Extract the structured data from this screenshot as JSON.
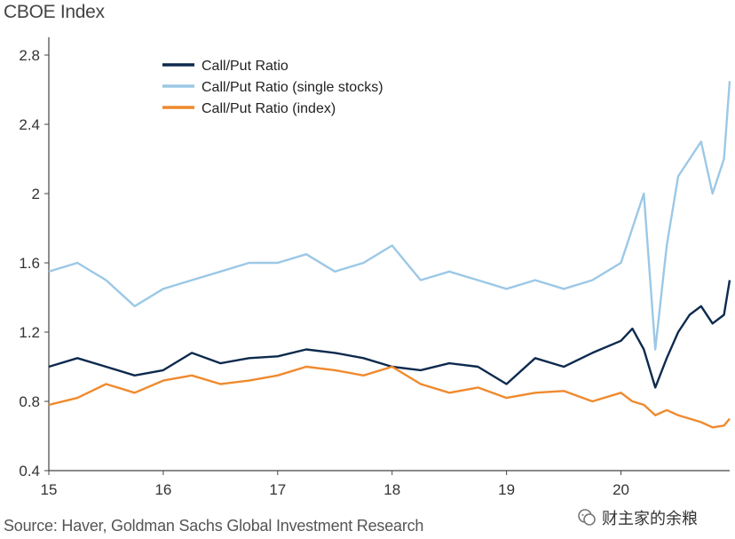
{
  "header": {
    "title": "CBOE Index"
  },
  "footer": {
    "source": "Source: Haver, Goldman Sachs Global Investment Research"
  },
  "watermark": {
    "text": "财主家的余粮",
    "icon": "wechat-icon"
  },
  "chart_data": {
    "type": "line",
    "title": "CBOE Index",
    "xlabel": "",
    "ylabel": "",
    "x_ticks": [
      "15",
      "16",
      "17",
      "18",
      "19",
      "20"
    ],
    "y_ticks": [
      "0.4",
      "0.8",
      "1.2",
      "1.6",
      "2",
      "2.4",
      "2.8"
    ],
    "ylim": [
      0.4,
      2.8
    ],
    "xlim": [
      2015.0,
      2020.95
    ],
    "grid": false,
    "legend_position": "top-left",
    "x": [
      2015.0,
      2015.25,
      2015.5,
      2015.75,
      2016.0,
      2016.25,
      2016.5,
      2016.75,
      2017.0,
      2017.25,
      2017.5,
      2017.75,
      2018.0,
      2018.25,
      2018.5,
      2018.75,
      2019.0,
      2019.25,
      2019.5,
      2019.75,
      2020.0,
      2020.1,
      2020.2,
      2020.3,
      2020.4,
      2020.5,
      2020.6,
      2020.7,
      2020.8,
      2020.9,
      2020.95
    ],
    "series": [
      {
        "name": "Call/Put Ratio",
        "color": "#0d2a4e",
        "values": [
          1.0,
          1.05,
          1.0,
          0.95,
          0.98,
          1.08,
          1.02,
          1.05,
          1.06,
          1.1,
          1.08,
          1.05,
          1.0,
          0.98,
          1.02,
          1.0,
          0.9,
          1.05,
          1.0,
          1.08,
          1.15,
          1.22,
          1.1,
          0.88,
          1.05,
          1.2,
          1.3,
          1.35,
          1.25,
          1.3,
          1.5
        ]
      },
      {
        "name": "Call/Put Ratio (single stocks)",
        "color": "#9cc8e6",
        "values": [
          1.55,
          1.6,
          1.5,
          1.35,
          1.45,
          1.5,
          1.55,
          1.6,
          1.6,
          1.65,
          1.55,
          1.6,
          1.7,
          1.5,
          1.55,
          1.5,
          1.45,
          1.5,
          1.45,
          1.5,
          1.6,
          1.8,
          2.0,
          1.1,
          1.7,
          2.1,
          2.2,
          2.3,
          2.0,
          2.2,
          2.65
        ]
      },
      {
        "name": "Call/Put Ratio (index)",
        "color": "#ef8a2e",
        "values": [
          0.78,
          0.82,
          0.9,
          0.85,
          0.92,
          0.95,
          0.9,
          0.92,
          0.95,
          1.0,
          0.98,
          0.95,
          1.0,
          0.9,
          0.85,
          0.88,
          0.82,
          0.85,
          0.86,
          0.8,
          0.85,
          0.8,
          0.78,
          0.72,
          0.75,
          0.72,
          0.7,
          0.68,
          0.65,
          0.66,
          0.7
        ]
      }
    ]
  }
}
